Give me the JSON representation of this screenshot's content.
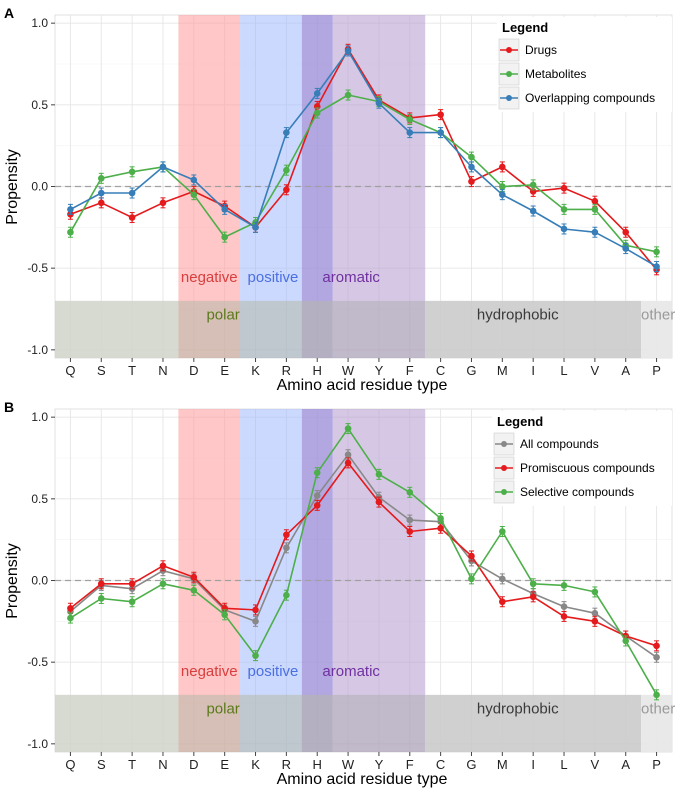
{
  "colors": {
    "negative": "#ff9999",
    "positive": "#99b3ff",
    "aromatic": "#b59ad0",
    "overlap": "#9a8ad8",
    "band": "#d2d2d2",
    "polar": "#cfd3c8",
    "hydrophobic": "#c8c8c8",
    "other": "#e8e8e8",
    "negative_text": "#d93e3e",
    "positive_text": "#4a6fe0",
    "aromatic_text": "#7030a0",
    "polar_text": "#5a7a1a",
    "hydrophobic_text": "#3a3a3a",
    "other_text": "#9a9a9a",
    "grid": "#e6e6e6",
    "zero_line": "#a0a0a0"
  },
  "chart_data": [
    {
      "type": "line",
      "panel_label": "A",
      "xlabel": "Amino acid residue type",
      "ylabel": "Propensity",
      "ylim": [
        -1.05,
        1.05
      ],
      "yticks": [
        -1.0,
        -0.5,
        0.0,
        0.5,
        1.0
      ],
      "ytick_labels": [
        "-1.0",
        "-0.5",
        "0.0",
        "0.5",
        "1.0"
      ],
      "categories": [
        "Q",
        "S",
        "T",
        "N",
        "D",
        "E",
        "K",
        "R",
        "H",
        "W",
        "Y",
        "F",
        "C",
        "G",
        "M",
        "I",
        "L",
        "V",
        "A",
        "P"
      ],
      "region_labels": {
        "negative": "negative",
        "positive": "positive",
        "aromatic": "aromatic",
        "polar": "polar",
        "hydrophobic": "hydrophobic",
        "other": "other"
      },
      "legend_title": "Legend",
      "series": [
        {
          "name": "Drugs",
          "color": "#e41a1c",
          "values": [
            -0.17,
            -0.1,
            -0.19,
            -0.1,
            -0.03,
            -0.12,
            -0.25,
            -0.02,
            0.49,
            0.84,
            0.53,
            0.42,
            0.44,
            0.03,
            0.12,
            -0.03,
            -0.01,
            -0.09,
            -0.28,
            -0.51
          ]
        },
        {
          "name": "Metabolites",
          "color": "#4daf4a",
          "values": [
            -0.28,
            0.05,
            0.09,
            0.12,
            -0.05,
            -0.31,
            -0.22,
            0.1,
            0.45,
            0.56,
            0.52,
            0.41,
            0.33,
            0.18,
            0.0,
            0.01,
            -0.14,
            -0.14,
            -0.36,
            -0.4
          ]
        },
        {
          "name": "Overlapping compounds",
          "color": "#377eb8",
          "values": [
            -0.14,
            -0.04,
            -0.04,
            0.12,
            0.04,
            -0.14,
            -0.25,
            0.33,
            0.57,
            0.83,
            0.51,
            0.33,
            0.33,
            0.12,
            -0.05,
            -0.15,
            -0.26,
            -0.28,
            -0.38,
            -0.49
          ]
        }
      ]
    },
    {
      "type": "line",
      "panel_label": "B",
      "xlabel": "Amino acid residue type",
      "ylabel": "Propensity",
      "ylim": [
        -1.05,
        1.05
      ],
      "yticks": [
        -1.0,
        -0.5,
        0.0,
        0.5,
        1.0
      ],
      "ytick_labels": [
        "-1.0",
        "-0.5",
        "0.0",
        "0.5",
        "1.0"
      ],
      "categories": [
        "Q",
        "S",
        "T",
        "N",
        "D",
        "E",
        "K",
        "R",
        "H",
        "W",
        "Y",
        "F",
        "C",
        "G",
        "M",
        "I",
        "L",
        "V",
        "A",
        "P"
      ],
      "region_labels": {
        "negative": "negative",
        "positive": "positive",
        "aromatic": "aromatic",
        "polar": "polar",
        "hydrophobic": "hydrophobic",
        "other": "other"
      },
      "legend_title": "Legend",
      "series": [
        {
          "name": "All compounds",
          "color": "#888888",
          "values": [
            -0.19,
            -0.03,
            -0.05,
            0.06,
            0.01,
            -0.18,
            -0.25,
            0.2,
            0.52,
            0.77,
            0.51,
            0.37,
            0.36,
            0.12,
            0.01,
            -0.08,
            -0.16,
            -0.2,
            -0.34,
            -0.47
          ]
        },
        {
          "name": "Promiscuous compounds",
          "color": "#e41a1c",
          "values": [
            -0.17,
            -0.02,
            -0.02,
            0.09,
            0.02,
            -0.17,
            -0.18,
            0.28,
            0.46,
            0.72,
            0.48,
            0.3,
            0.32,
            0.15,
            -0.13,
            -0.1,
            -0.22,
            -0.25,
            -0.34,
            -0.4
          ]
        },
        {
          "name": "Selective compounds",
          "color": "#4daf4a",
          "values": [
            -0.23,
            -0.11,
            -0.13,
            -0.02,
            -0.06,
            -0.21,
            -0.46,
            -0.09,
            0.66,
            0.93,
            0.65,
            0.54,
            0.38,
            0.01,
            0.3,
            -0.02,
            -0.03,
            -0.07,
            -0.37,
            -0.7
          ]
        }
      ]
    }
  ]
}
